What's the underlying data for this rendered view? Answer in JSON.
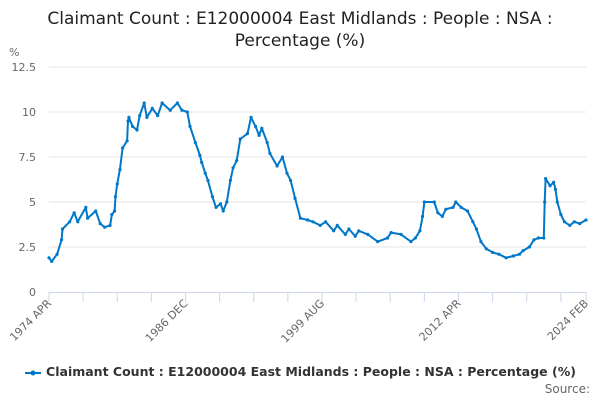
{
  "title": "Claimant Count : E12000004 East Midlands : People : NSA : Percentage (%)",
  "source_label": "Source:",
  "colors": {
    "series": "#0077c8",
    "grid": "#e6e6e6",
    "axis": "#ccd6eb"
  },
  "chart_data": {
    "type": "line",
    "title": "Claimant Count : E12000004 East Midlands : People : NSA : Percentage (%)",
    "ylabel": "%",
    "xlabel": "",
    "ylim": [
      0,
      12.5
    ],
    "yticks": [
      "0",
      "2.5",
      "5",
      "7.5",
      "10",
      "12.5"
    ],
    "xlim": [
      "1974-04",
      "2024-02"
    ],
    "xtick_labels": [
      "1974 APR",
      "1986 DEC",
      "1999 AUG",
      "2012 APR",
      "2024 FEB"
    ],
    "xtick_label_dates": [
      "1974-04",
      "1986-12",
      "1999-08",
      "2012-04",
      "2024-02"
    ],
    "grid": true,
    "legend": "bottom",
    "series": [
      {
        "name": "Claimant Count : E12000004 East Midlands : People : NSA : Percentage (%)",
        "points": [
          [
            "1974-04",
            1.9
          ],
          [
            "1974-07",
            1.7
          ],
          [
            "1975-01",
            2.1
          ],
          [
            "1975-06",
            2.9
          ],
          [
            "1975-07",
            3.5
          ],
          [
            "1976-03",
            3.9
          ],
          [
            "1976-08",
            4.4
          ],
          [
            "1976-12",
            3.9
          ],
          [
            "1977-09",
            4.7
          ],
          [
            "1977-11",
            4.1
          ],
          [
            "1978-08",
            4.5
          ],
          [
            "1979-01",
            3.8
          ],
          [
            "1979-06",
            3.6
          ],
          [
            "1979-12",
            3.7
          ],
          [
            "1980-02",
            4.3
          ],
          [
            "1980-05",
            4.5
          ],
          [
            "1980-06",
            5.3
          ],
          [
            "1980-08",
            6.0
          ],
          [
            "1980-11",
            6.8
          ],
          [
            "1981-02",
            8.0
          ],
          [
            "1981-07",
            8.4
          ],
          [
            "1981-08",
            9.5
          ],
          [
            "1981-09",
            9.7
          ],
          [
            "1982-01",
            9.2
          ],
          [
            "1982-06",
            9.0
          ],
          [
            "1982-09",
            9.8
          ],
          [
            "1983-02",
            10.5
          ],
          [
            "1983-05",
            9.7
          ],
          [
            "1983-11",
            10.2
          ],
          [
            "1984-05",
            9.8
          ],
          [
            "1984-10",
            10.5
          ],
          [
            "1985-07",
            10.1
          ],
          [
            "1986-03",
            10.5
          ],
          [
            "1986-08",
            10.1
          ],
          [
            "1987-02",
            10.0
          ],
          [
            "1987-05",
            9.2
          ],
          [
            "1987-11",
            8.3
          ],
          [
            "1988-04",
            7.6
          ],
          [
            "1988-06",
            7.2
          ],
          [
            "1988-10",
            6.6
          ],
          [
            "1989-01",
            6.2
          ],
          [
            "1989-06",
            5.3
          ],
          [
            "1989-10",
            4.7
          ],
          [
            "1990-03",
            4.9
          ],
          [
            "1990-06",
            4.5
          ],
          [
            "1990-10",
            5.0
          ],
          [
            "1991-02",
            6.2
          ],
          [
            "1991-05",
            6.9
          ],
          [
            "1991-09",
            7.3
          ],
          [
            "1992-01",
            8.5
          ],
          [
            "1992-09",
            8.8
          ],
          [
            "1993-01",
            9.7
          ],
          [
            "1993-06",
            9.2
          ],
          [
            "1993-10",
            8.7
          ],
          [
            "1994-01",
            9.1
          ],
          [
            "1994-07",
            8.3
          ],
          [
            "1994-10",
            7.7
          ],
          [
            "1995-06",
            7.0
          ],
          [
            "1995-12",
            7.5
          ],
          [
            "1996-05",
            6.6
          ],
          [
            "1996-09",
            6.2
          ],
          [
            "1997-02",
            5.2
          ],
          [
            "1997-08",
            4.1
          ],
          [
            "1998-04",
            4.0
          ],
          [
            "1998-10",
            3.9
          ],
          [
            "1999-06",
            3.7
          ],
          [
            "1999-12",
            3.9
          ],
          [
            "2000-09",
            3.4
          ],
          [
            "2001-01",
            3.7
          ],
          [
            "2001-10",
            3.2
          ],
          [
            "2002-02",
            3.5
          ],
          [
            "2002-09",
            3.1
          ],
          [
            "2003-01",
            3.4
          ],
          [
            "2003-11",
            3.2
          ],
          [
            "2004-10",
            2.8
          ],
          [
            "2005-09",
            3.0
          ],
          [
            "2006-01",
            3.3
          ],
          [
            "2006-12",
            3.2
          ],
          [
            "2007-11",
            2.8
          ],
          [
            "2008-04",
            3.0
          ],
          [
            "2008-09",
            3.4
          ],
          [
            "2008-12",
            4.2
          ],
          [
            "2009-02",
            5.0
          ],
          [
            "2010-01",
            5.0
          ],
          [
            "2010-05",
            4.4
          ],
          [
            "2010-10",
            4.2
          ],
          [
            "2011-02",
            4.6
          ],
          [
            "2011-10",
            4.7
          ],
          [
            "2012-01",
            5.0
          ],
          [
            "2012-07",
            4.7
          ],
          [
            "2013-02",
            4.5
          ],
          [
            "2013-08",
            3.9
          ],
          [
            "2013-12",
            3.5
          ],
          [
            "2014-05",
            2.8
          ],
          [
            "2014-11",
            2.4
          ],
          [
            "2015-06",
            2.2
          ],
          [
            "2016-01",
            2.1
          ],
          [
            "2016-09",
            1.9
          ],
          [
            "2017-05",
            2.0
          ],
          [
            "2017-12",
            2.1
          ],
          [
            "2018-04",
            2.3
          ],
          [
            "2018-11",
            2.5
          ],
          [
            "2019-04",
            2.9
          ],
          [
            "2019-09",
            3.0
          ],
          [
            "2020-03",
            3.0
          ],
          [
            "2020-04",
            5.0
          ],
          [
            "2020-05",
            6.3
          ],
          [
            "2020-10",
            5.9
          ],
          [
            "2021-02",
            6.1
          ],
          [
            "2021-04",
            5.7
          ],
          [
            "2021-06",
            5.0
          ],
          [
            "2021-10",
            4.3
          ],
          [
            "2022-02",
            3.9
          ],
          [
            "2022-08",
            3.7
          ],
          [
            "2023-01",
            3.9
          ],
          [
            "2023-07",
            3.8
          ],
          [
            "2024-02",
            4.0
          ]
        ]
      }
    ]
  }
}
